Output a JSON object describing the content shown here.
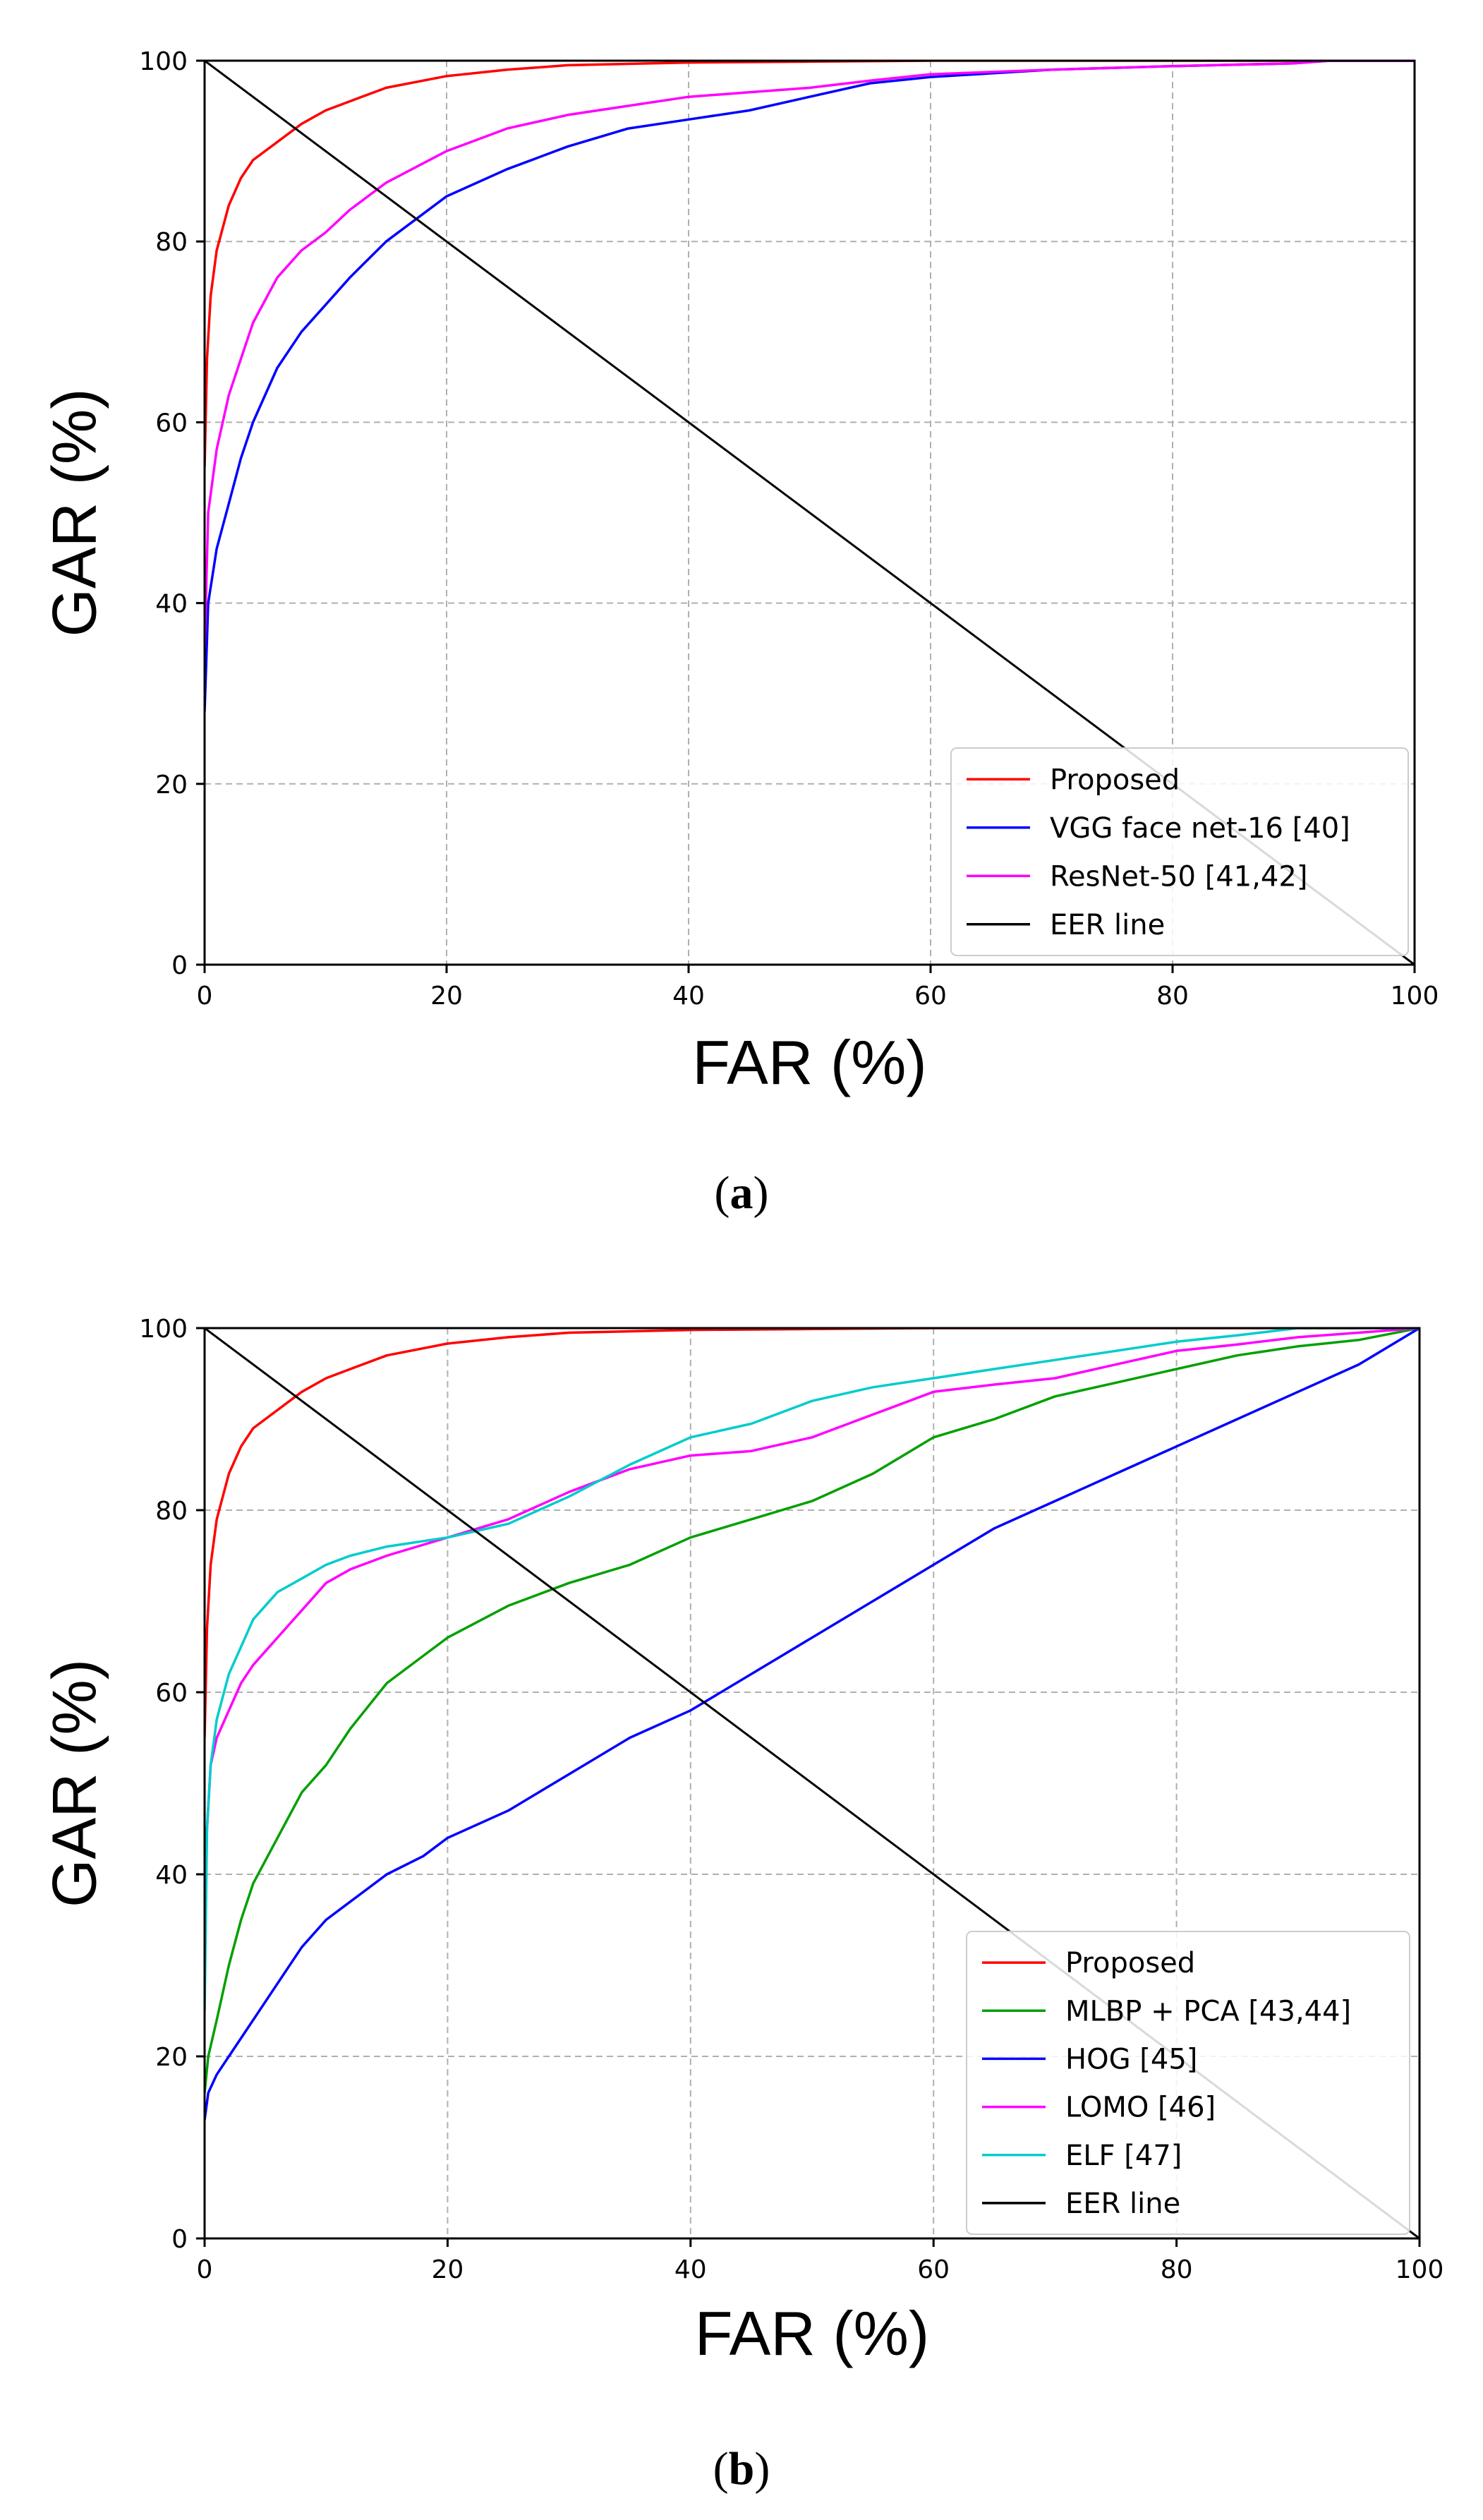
{
  "chart_data": [
    {
      "type": "line",
      "caption": "a",
      "xlabel": "FAR (%)",
      "ylabel": "GAR (%)",
      "xlim": [
        0,
        100
      ],
      "ylim": [
        0,
        100
      ],
      "xticks": [
        0,
        20,
        40,
        60,
        80,
        100
      ],
      "yticks": [
        0,
        20,
        40,
        60,
        80,
        100
      ],
      "grid": true,
      "legend_position": "lower-right",
      "series": [
        {
          "name": "Proposed",
          "color": "#ff0000",
          "x": [
            0,
            0.2,
            0.5,
            1,
            2,
            3,
            4,
            6,
            8,
            10,
            12,
            15,
            20,
            25,
            30,
            40,
            50,
            60,
            80,
            100
          ],
          "y": [
            55,
            67,
            74,
            79,
            84,
            87,
            89,
            91,
            93,
            94.5,
            95.5,
            97,
            98.3,
            99,
            99.5,
            99.8,
            99.9,
            100,
            100,
            100
          ]
        },
        {
          "name": "VGG face net-16 [40]",
          "color": "#0000ff",
          "x": [
            0,
            0.3,
            1,
            2,
            3,
            4,
            6,
            8,
            10,
            12,
            15,
            18,
            20,
            25,
            30,
            35,
            40,
            45,
            50,
            55,
            60,
            70,
            80,
            90,
            93,
            100
          ],
          "y": [
            28,
            40,
            46,
            51,
            56,
            60,
            66,
            70,
            73,
            76,
            80,
            83,
            85,
            88,
            90.5,
            92.5,
            93.5,
            94.5,
            96,
            97.5,
            98.2,
            99,
            99.4,
            99.7,
            100,
            100
          ]
        },
        {
          "name": "ResNet-50 [41,42]",
          "color": "#ff00ff",
          "x": [
            0,
            0.3,
            1,
            2,
            3,
            4,
            6,
            8,
            10,
            12,
            15,
            20,
            25,
            30,
            35,
            40,
            45,
            50,
            55,
            60,
            70,
            80,
            90,
            93,
            100
          ],
          "y": [
            35,
            50,
            57,
            63,
            67,
            71,
            76,
            79,
            81,
            83.5,
            86.5,
            90,
            92.5,
            94,
            95,
            96,
            96.5,
            97,
            97.8,
            98.5,
            99,
            99.4,
            99.7,
            100,
            100
          ]
        },
        {
          "name": "EER line",
          "color": "#000000",
          "x": [
            0,
            100
          ],
          "y": [
            100,
            0
          ]
        }
      ]
    },
    {
      "type": "line",
      "caption": "b",
      "xlabel": "FAR (%)",
      "ylabel": "GAR (%)",
      "xlim": [
        0,
        100
      ],
      "ylim": [
        0,
        100
      ],
      "xticks": [
        0,
        20,
        40,
        60,
        80,
        100
      ],
      "yticks": [
        0,
        20,
        40,
        60,
        80,
        100
      ],
      "grid": true,
      "legend_position": "lower-right",
      "series": [
        {
          "name": "Proposed",
          "color": "#ff0000",
          "x": [
            0,
            0.2,
            0.5,
            1,
            2,
            3,
            4,
            6,
            8,
            10,
            12,
            15,
            20,
            25,
            30,
            40,
            50,
            60,
            80,
            100
          ],
          "y": [
            55,
            67,
            74,
            79,
            84,
            87,
            89,
            91,
            93,
            94.5,
            95.5,
            97,
            98.3,
            99,
            99.5,
            99.8,
            99.9,
            100,
            100,
            100
          ]
        },
        {
          "name": "MLBP + PCA [43,44]",
          "color": "#00a000",
          "x": [
            0,
            0.3,
            1,
            2,
            3,
            4,
            6,
            8,
            10,
            12,
            15,
            18,
            20,
            25,
            30,
            35,
            40,
            45,
            50,
            55,
            60,
            65,
            70,
            75,
            80,
            85,
            90,
            95,
            100
          ],
          "y": [
            16,
            20,
            24,
            30,
            35,
            39,
            44,
            49,
            52,
            56,
            61,
            64,
            66,
            69.5,
            72,
            74,
            77,
            79,
            81,
            84,
            88,
            90,
            92.5,
            94,
            95.5,
            97,
            98,
            98.7,
            100
          ]
        },
        {
          "name": "HOG [45]",
          "color": "#0000ff",
          "x": [
            0,
            0.3,
            1,
            2,
            4,
            6,
            8,
            10,
            12,
            15,
            18,
            20,
            25,
            30,
            35,
            40,
            45,
            50,
            55,
            60,
            65,
            70,
            75,
            80,
            85,
            90,
            95,
            100
          ],
          "y": [
            13,
            16,
            18,
            20,
            24,
            28,
            32,
            35,
            37,
            40,
            42,
            44,
            47,
            51,
            55,
            58,
            62,
            66,
            70,
            74,
            78,
            81,
            84,
            87,
            90,
            93,
            96,
            100
          ]
        },
        {
          "name": "LOMO [46]",
          "color": "#ff00ff",
          "x": [
            0,
            0.2,
            0.5,
            1,
            2,
            3,
            4,
            6,
            8,
            10,
            12,
            15,
            20,
            25,
            30,
            35,
            40,
            45,
            50,
            55,
            60,
            65,
            70,
            75,
            80,
            85,
            90,
            95,
            100
          ],
          "y": [
            33,
            45,
            52,
            55,
            58,
            61,
            63,
            66,
            69,
            72,
            73.5,
            75,
            77,
            79,
            82,
            84.5,
            86,
            86.5,
            88,
            90.5,
            93,
            93.8,
            94.5,
            96,
            97.5,
            98.2,
            99,
            99.5,
            100
          ]
        },
        {
          "name": "ELF [47]",
          "color": "#00cccc",
          "x": [
            0,
            0.2,
            0.5,
            1,
            2,
            3,
            4,
            6,
            8,
            10,
            12,
            15,
            20,
            25,
            30,
            35,
            40,
            45,
            50,
            55,
            60,
            65,
            70,
            75,
            80,
            85,
            90,
            95,
            100
          ],
          "y": [
            25,
            45,
            52,
            57,
            62,
            65,
            68,
            71,
            72.5,
            74,
            75,
            76,
            77,
            78.5,
            81.5,
            85,
            88,
            89.5,
            92,
            93.5,
            94.5,
            95.5,
            96.5,
            97.5,
            98.5,
            99.2,
            100,
            100,
            100
          ]
        },
        {
          "name": "EER line",
          "color": "#000000",
          "x": [
            0,
            100
          ],
          "y": [
            100,
            0
          ]
        }
      ]
    }
  ]
}
